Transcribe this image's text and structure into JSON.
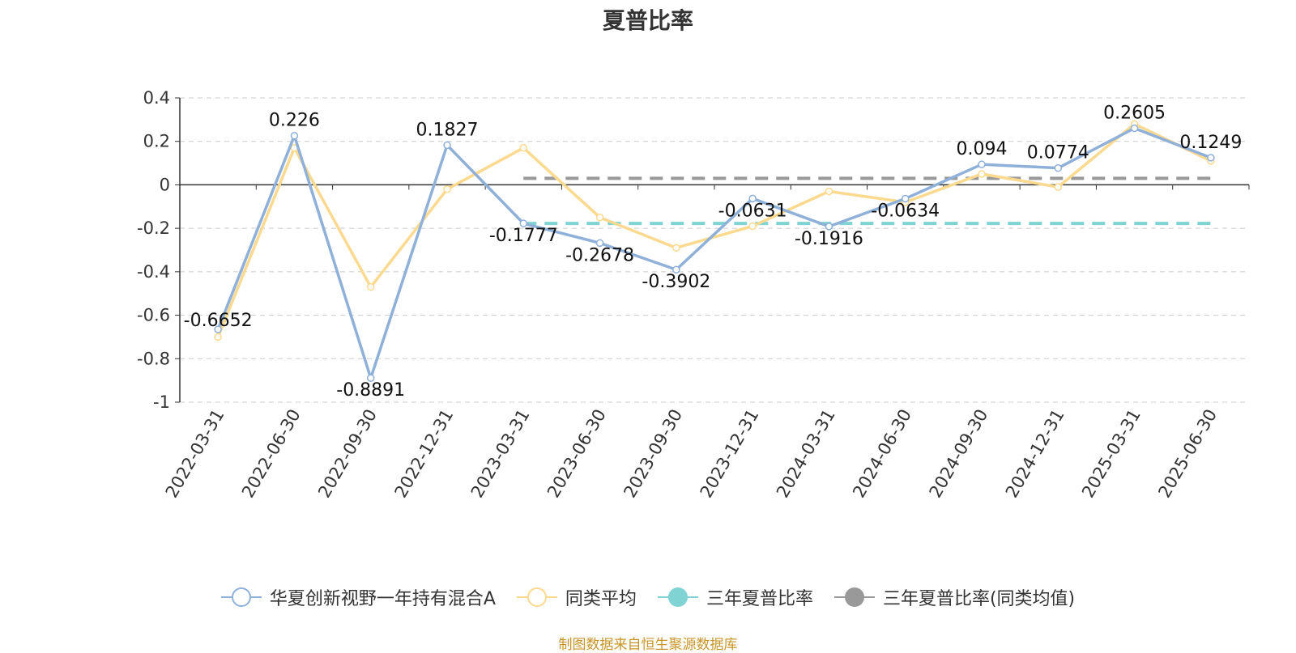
{
  "chart_data": {
    "type": "line",
    "title": "夏普比率",
    "categories": [
      "2022-03-31",
      "2022-06-30",
      "2022-09-30",
      "2022-12-31",
      "2023-03-31",
      "2023-06-30",
      "2023-09-30",
      "2023-12-31",
      "2024-03-31",
      "2024-06-30",
      "2024-09-30",
      "2024-12-31",
      "2025-03-31",
      "2025-06-30"
    ],
    "series": [
      {
        "name": "华夏创新视野一年持有混合A",
        "color": "#8eb0d9",
        "values": [
          -0.6652,
          0.226,
          -0.8891,
          0.1827,
          -0.1777,
          -0.2678,
          -0.3902,
          -0.0631,
          -0.1916,
          -0.0634,
          0.094,
          0.0774,
          0.2605,
          0.1249
        ],
        "labels": [
          "-0.6652",
          "0.226",
          "-0.8891",
          "0.1827",
          "-0.1777",
          "-0.2678",
          "-0.3902",
          "-0.0631",
          "-0.1916",
          "-0.0634",
          "0.094",
          "0.0774",
          "0.2605",
          "0.1249"
        ]
      },
      {
        "name": "同类平均",
        "color": "#fbd98e",
        "values": [
          -0.7,
          0.17,
          -0.47,
          -0.02,
          0.17,
          -0.15,
          -0.29,
          -0.19,
          -0.03,
          -0.08,
          0.05,
          -0.01,
          0.28,
          0.11
        ]
      }
    ],
    "reference_lines": [
      {
        "name": "三年夏普比率",
        "color": "#7fd3d3",
        "value": -0.1777,
        "from": "2023-03-31",
        "to": "2025-06-30"
      },
      {
        "name": "三年夏普比率(同类均值)",
        "color": "#999999",
        "value": 0.03,
        "from": "2023-03-31",
        "to": "2025-06-30"
      }
    ],
    "yticks": [
      "0.4",
      "0.2",
      "0",
      "-0.2",
      "-0.4",
      "-0.6",
      "-0.8",
      "-1"
    ],
    "ylim": [
      -1,
      0.4
    ],
    "grid": true,
    "legend_position": "bottom"
  },
  "footer": {
    "source": "制图数据来自恒生聚源数据库"
  }
}
